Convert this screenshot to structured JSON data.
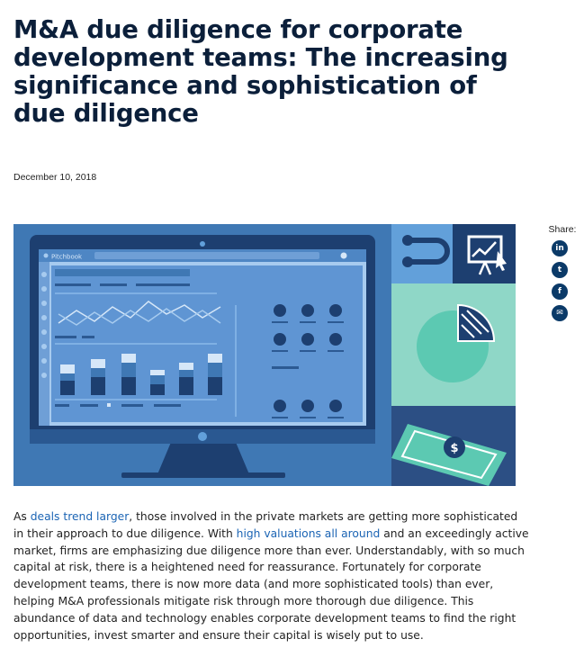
{
  "article": {
    "title": "M&A due diligence for corporate development teams: The increasing significance and sophistication of due diligence",
    "date": "December 10, 2018",
    "body": {
      "p1": "As ",
      "link1": "deals trend larger",
      "p2": ", those involved in the private markets are getting more sophisticated in their approach to due diligence. With ",
      "link2": "high valuations all around",
      "p3": " and an exceedingly active market, firms are emphasizing due diligence more than ever. Understandably, with so much capital at risk, there is a heightened need for reassurance. Fortunately for corporate development teams, there is now more data (and more sophisticated tools) than ever, helping M&A professionals mitigate risk through more thorough due diligence. This abundance of data and technology enables corporate development teams to find the right opportunities, invest smarter and ensure their capital is wisely put to use."
    }
  },
  "hero": {
    "brand": "PitchBook",
    "icons": [
      "presentation-chart-icon",
      "pie-chart-icon",
      "dollar-bill-icon"
    ],
    "colors": {
      "navy": "#1d3f70",
      "mid": "#3f78b4",
      "light": "#62a0da",
      "teal": "#5cc9b2"
    }
  },
  "share": {
    "label": "Share:",
    "buttons": [
      {
        "name": "linkedin",
        "glyph": "in"
      },
      {
        "name": "twitter",
        "glyph": "t"
      },
      {
        "name": "facebook",
        "glyph": "f"
      },
      {
        "name": "email",
        "glyph": "✉"
      }
    ]
  }
}
